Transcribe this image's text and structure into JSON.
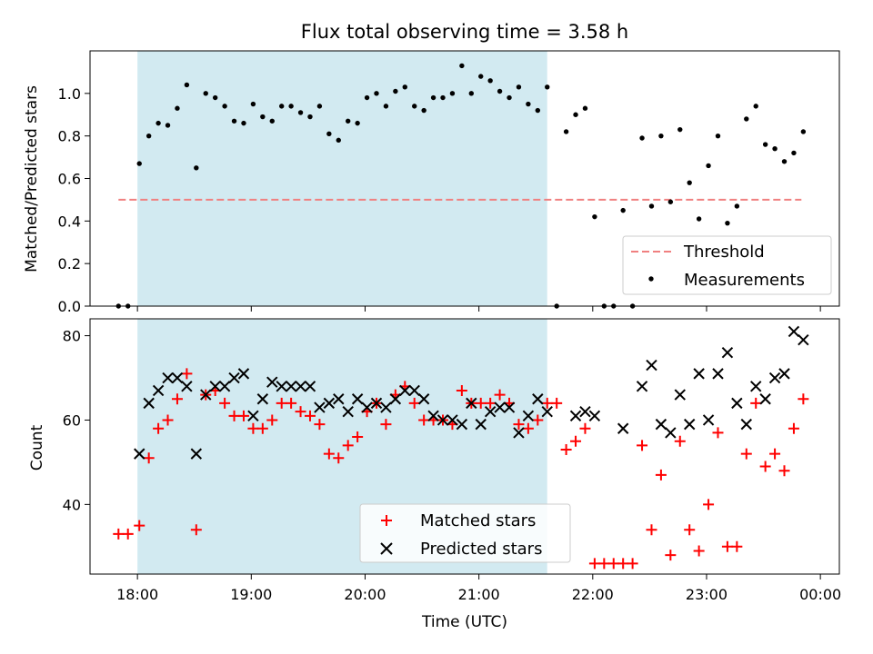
{
  "figure": {
    "title": "Flux total observing time = 3.58 h",
    "xlabel": "Time (UTC)"
  },
  "colors": {
    "shade": "#add8e6",
    "threshold": "#f08080",
    "matched": "#ff0000",
    "predicted": "#000000",
    "measurements": "#000000"
  },
  "chart_data": [
    {
      "type": "scatter",
      "panel": "top",
      "ylabel": "Matched/Predicted stars",
      "xlim": [
        "17:35",
        "00:10"
      ],
      "ylim": [
        0,
        1.2
      ],
      "yticks": [
        "0.0",
        "0.2",
        "0.4",
        "0.6",
        "0.8",
        "1.0"
      ],
      "xtick_positions": [
        "18:00",
        "19:00",
        "20:00",
        "21:00",
        "22:00",
        "23:00",
        "00:00"
      ],
      "shaded_interval": [
        "18:00",
        "21:36"
      ],
      "threshold": {
        "name": "Threshold",
        "value": 0.5,
        "x_range": [
          "17:50",
          "23:50"
        ]
      },
      "legend": [
        "Threshold",
        "Measurements"
      ],
      "legend_position": "lower right",
      "series": [
        {
          "name": "Measurements",
          "x": [
            "17:50",
            "17:55",
            "18:01",
            "18:06",
            "18:11",
            "18:16",
            "18:21",
            "18:26",
            "18:31",
            "18:36",
            "18:41",
            "18:46",
            "18:51",
            "18:56",
            "19:01",
            "19:06",
            "19:11",
            "19:16",
            "19:21",
            "19:26",
            "19:31",
            "19:36",
            "19:41",
            "19:46",
            "19:51",
            "19:56",
            "20:01",
            "20:06",
            "20:11",
            "20:16",
            "20:21",
            "20:26",
            "20:31",
            "20:36",
            "20:41",
            "20:46",
            "20:51",
            "20:56",
            "21:01",
            "21:06",
            "21:11",
            "21:16",
            "21:21",
            "21:26",
            "21:31",
            "21:36",
            "21:41",
            "21:46",
            "21:51",
            "21:56",
            "22:01",
            "22:06",
            "22:11",
            "22:16",
            "22:21",
            "22:26",
            "22:31",
            "22:36",
            "22:41",
            "22:46",
            "22:51",
            "22:56",
            "23:01",
            "23:06",
            "23:11",
            "23:16",
            "23:21",
            "23:26",
            "23:31",
            "23:36",
            "23:41",
            "23:46",
            "23:51"
          ],
          "y": [
            0.0,
            0.0,
            0.67,
            0.8,
            0.86,
            0.85,
            0.93,
            1.04,
            0.65,
            1.0,
            0.98,
            0.94,
            0.87,
            0.86,
            0.95,
            0.89,
            0.87,
            0.94,
            0.94,
            0.91,
            0.89,
            0.94,
            0.81,
            0.78,
            0.87,
            0.86,
            0.98,
            1.0,
            0.94,
            1.01,
            1.03,
            0.94,
            0.92,
            0.98,
            0.98,
            1.0,
            1.13,
            1.0,
            1.08,
            1.06,
            1.01,
            0.98,
            1.03,
            0.95,
            0.92,
            1.03,
            0.0,
            0.82,
            0.9,
            0.93,
            0.42,
            0.0,
            0.0,
            0.45,
            0.0,
            0.79,
            0.47,
            0.8,
            0.49,
            0.83,
            0.58,
            0.41,
            0.66,
            0.8,
            0.39,
            0.47,
            0.88,
            0.94,
            0.76,
            0.74,
            0.68,
            0.72,
            0.82
          ]
        }
      ]
    },
    {
      "type": "scatter",
      "panel": "bottom",
      "ylabel": "Count",
      "xlabel": "Time (UTC)",
      "xlim": [
        "17:35",
        "00:10"
      ],
      "ylim": [
        23.5,
        84
      ],
      "yticks": [
        "40",
        "60",
        "80"
      ],
      "xticks": [
        "18:00",
        "19:00",
        "20:00",
        "21:00",
        "22:00",
        "23:00",
        "00:00"
      ],
      "shaded_interval": [
        "18:00",
        "21:36"
      ],
      "legend": [
        "Matched stars",
        "Predicted stars"
      ],
      "legend_position": "lower center",
      "series": [
        {
          "name": "Matched stars",
          "marker": "+",
          "x": [
            "17:50",
            "17:55",
            "18:01",
            "18:06",
            "18:11",
            "18:16",
            "18:21",
            "18:26",
            "18:31",
            "18:36",
            "18:41",
            "18:46",
            "18:51",
            "18:56",
            "19:01",
            "19:06",
            "19:11",
            "19:16",
            "19:21",
            "19:26",
            "19:31",
            "19:36",
            "19:41",
            "19:46",
            "19:51",
            "19:56",
            "20:01",
            "20:06",
            "20:11",
            "20:16",
            "20:21",
            "20:26",
            "20:31",
            "20:36",
            "20:41",
            "20:46",
            "20:51",
            "20:56",
            "21:01",
            "21:06",
            "21:11",
            "21:16",
            "21:21",
            "21:26",
            "21:31",
            "21:36",
            "21:41",
            "21:46",
            "21:51",
            "21:56",
            "22:01",
            "22:06",
            "22:11",
            "22:16",
            "22:21",
            "22:26",
            "22:31",
            "22:36",
            "22:41",
            "22:46",
            "22:51",
            "22:56",
            "23:01",
            "23:06",
            "23:11",
            "23:16",
            "23:21",
            "23:26",
            "23:31",
            "23:36",
            "23:41",
            "23:46",
            "23:51"
          ],
          "y": [
            33,
            33,
            35,
            51,
            58,
            60,
            65,
            71,
            34,
            66,
            67,
            64,
            61,
            61,
            58,
            58,
            60,
            64,
            64,
            62,
            61,
            59,
            52,
            51,
            54,
            56,
            62,
            64,
            59,
            66,
            68,
            64,
            60,
            60,
            60,
            59,
            67,
            64,
            64,
            64,
            66,
            64,
            59,
            58,
            60,
            64,
            64,
            53,
            55,
            58,
            26,
            26,
            26,
            26,
            26,
            54,
            34,
            47,
            28,
            55,
            34,
            29,
            40,
            57,
            30,
            30,
            52,
            64,
            49,
            52,
            48,
            58,
            65
          ]
        },
        {
          "name": "Predicted stars",
          "marker": "x",
          "x": [
            "18:01",
            "18:06",
            "18:11",
            "18:16",
            "18:21",
            "18:26",
            "18:31",
            "18:36",
            "18:41",
            "18:46",
            "18:51",
            "18:56",
            "19:01",
            "19:06",
            "19:11",
            "19:16",
            "19:21",
            "19:26",
            "19:31",
            "19:36",
            "19:41",
            "19:46",
            "19:51",
            "19:56",
            "20:01",
            "20:06",
            "20:11",
            "20:16",
            "20:21",
            "20:26",
            "20:31",
            "20:36",
            "20:41",
            "20:46",
            "20:51",
            "20:56",
            "21:01",
            "21:06",
            "21:11",
            "21:16",
            "21:21",
            "21:26",
            "21:31",
            "21:36",
            "21:51",
            "21:56",
            "22:01",
            "22:16",
            "22:26",
            "22:31",
            "22:36",
            "22:41",
            "22:46",
            "22:51",
            "22:56",
            "23:01",
            "23:06",
            "23:11",
            "23:16",
            "23:21",
            "23:26",
            "23:31",
            "23:36",
            "23:41",
            "23:46",
            "23:51"
          ],
          "y": [
            52,
            64,
            67,
            70,
            70,
            68,
            52,
            66,
            68,
            68,
            70,
            71,
            61,
            65,
            69,
            68,
            68,
            68,
            68,
            63,
            64,
            65,
            62,
            65,
            63,
            64,
            63,
            65,
            67,
            67,
            65,
            61,
            60,
            60,
            59,
            64,
            59,
            62,
            63,
            63,
            57,
            61,
            65,
            62,
            61,
            62,
            61,
            58,
            68,
            73,
            59,
            57,
            66,
            59,
            71,
            60,
            71,
            76,
            64,
            59,
            68,
            65,
            70,
            71,
            81,
            79
          ]
        }
      ]
    }
  ]
}
